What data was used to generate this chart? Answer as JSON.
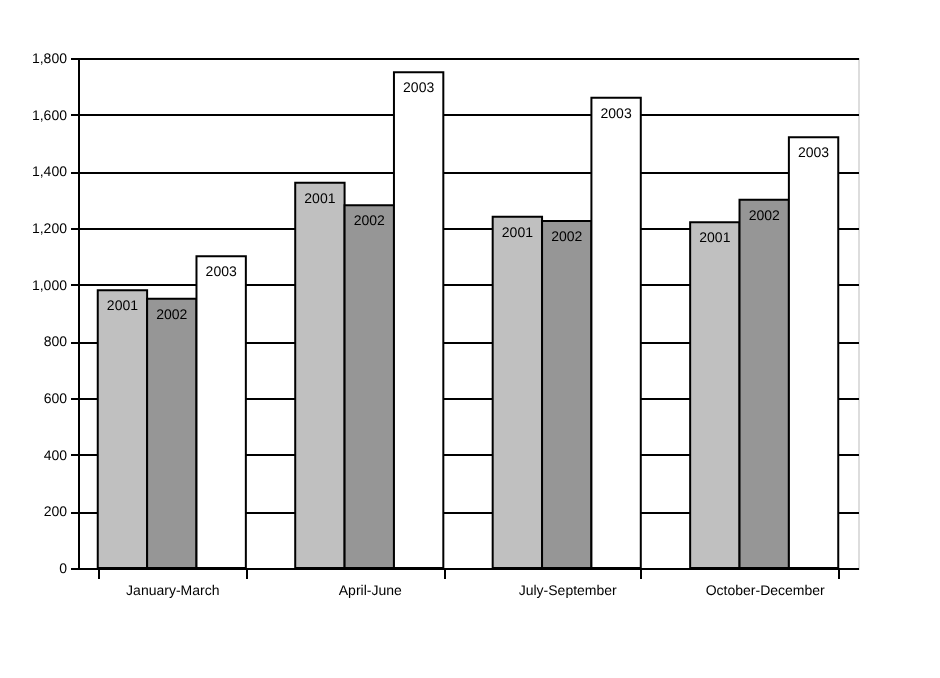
{
  "chart_data": {
    "type": "bar",
    "categories": [
      "January-March",
      "April-June",
      "July-September",
      "October-December"
    ],
    "series": [
      {
        "name": "2001",
        "color": "#c0c0c0",
        "values": [
          980,
          1360,
          1240,
          1220
        ]
      },
      {
        "name": "2002",
        "color": "#969696",
        "values": [
          950,
          1280,
          1225,
          1300
        ]
      },
      {
        "name": "2003",
        "color": "#ffffff",
        "values": [
          1100,
          1750,
          1660,
          1520
        ]
      }
    ],
    "ylim": [
      0,
      1800
    ],
    "yticks": [
      {
        "value": 0,
        "label": "0"
      },
      {
        "value": 200,
        "label": "200"
      },
      {
        "value": 400,
        "label": "400"
      },
      {
        "value": 600,
        "label": "600"
      },
      {
        "value": 800,
        "label": "800"
      },
      {
        "value": 1000,
        "label": "1,000"
      },
      {
        "value": 1200,
        "label": "1,200"
      },
      {
        "value": 1400,
        "label": "1,400"
      },
      {
        "value": 1600,
        "label": "1,600"
      },
      {
        "value": 1800,
        "label": "1,800"
      }
    ],
    "grid": "y",
    "legend": false
  }
}
